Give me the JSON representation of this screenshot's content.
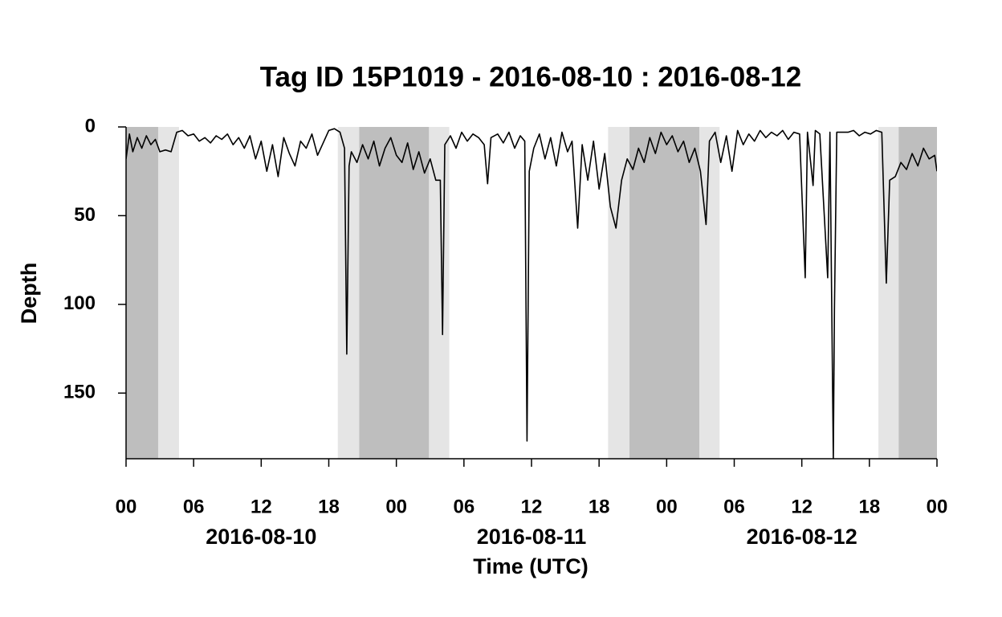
{
  "chart_data": {
    "type": "line",
    "title": "Tag ID 15P1019 - 2016-08-10 : 2016-08-12",
    "x_label": "Time (UTC)",
    "y_label": "Depth",
    "xlim": [
      0,
      72
    ],
    "ylim": [
      0,
      187
    ],
    "y_reversed": true,
    "xticks": [
      {
        "value": 0,
        "label": "00"
      },
      {
        "value": 6,
        "label": "06"
      },
      12,
      18,
      {
        "value": 24,
        "label": "00"
      },
      {
        "value": 30,
        "label": "06"
      },
      {
        "value": 36,
        "label": "12"
      },
      {
        "value": 42,
        "label": "18"
      },
      {
        "value": 48,
        "label": "00"
      },
      {
        "value": 54,
        "label": "06"
      },
      {
        "value": 60,
        "label": "12"
      },
      {
        "value": 66,
        "label": "18"
      },
      {
        "value": 72,
        "label": "00"
      }
    ],
    "yticks": [
      0,
      50,
      100,
      150
    ],
    "date_labels": [
      {
        "value": 12,
        "label": "2016-08-10"
      },
      {
        "value": 36,
        "label": "2016-08-11"
      },
      {
        "value": 60,
        "label": "2016-08-12"
      }
    ],
    "shading": [
      {
        "start": 0,
        "end": 2.85,
        "color": "#bebebe"
      },
      {
        "start": 2.85,
        "end": 4.7,
        "color": "#e5e5e5"
      },
      {
        "start": 18.8,
        "end": 20.7,
        "color": "#e5e5e5"
      },
      {
        "start": 20.7,
        "end": 26.9,
        "color": "#bebebe"
      },
      {
        "start": 26.9,
        "end": 28.7,
        "color": "#e5e5e5"
      },
      {
        "start": 42.8,
        "end": 44.7,
        "color": "#e5e5e5"
      },
      {
        "start": 44.7,
        "end": 50.9,
        "color": "#bebebe"
      },
      {
        "start": 50.9,
        "end": 52.7,
        "color": "#e5e5e5"
      },
      {
        "start": 66.8,
        "end": 68.6,
        "color": "#e5e5e5"
      },
      {
        "start": 68.6,
        "end": 72,
        "color": "#bebebe"
      }
    ],
    "color": "#000000",
    "x": [
      0,
      0.3,
      0.6,
      1,
      1.4,
      1.8,
      2.2,
      2.6,
      3,
      3.5,
      4,
      4.5,
      5,
      5.5,
      6,
      6.5,
      7,
      7.5,
      8,
      8.5,
      9,
      9.5,
      10,
      10.5,
      11,
      11.5,
      12,
      12.5,
      13,
      13.5,
      14,
      14.5,
      15,
      15.5,
      16,
      16.5,
      17,
      17.5,
      18,
      18.5,
      19,
      19.4,
      19.6,
      19.8,
      20,
      20.5,
      21,
      21.5,
      22,
      22.5,
      23,
      23.5,
      24,
      24.5,
      25,
      25.5,
      26,
      26.5,
      27,
      27.5,
      27.9,
      28.1,
      28.3,
      28.8,
      29.3,
      29.8,
      30.3,
      30.8,
      31.3,
      31.8,
      32.1,
      32.4,
      33,
      33.5,
      34,
      34.5,
      35,
      35.4,
      35.6,
      35.8,
      36.2,
      36.7,
      37.2,
      37.7,
      38.2,
      38.7,
      39.2,
      39.6,
      40.1,
      40.5,
      41,
      41.5,
      42,
      42.5,
      43,
      43.5,
      44,
      44.5,
      45,
      45.5,
      46,
      46.5,
      47,
      47.5,
      48,
      48.5,
      49,
      49.5,
      50,
      50.5,
      51,
      51.5,
      51.8,
      52.3,
      52.8,
      53.3,
      53.8,
      54.3,
      54.8,
      55.3,
      55.8,
      56.3,
      56.8,
      57.3,
      57.8,
      58.3,
      58.8,
      59.3,
      59.8,
      60.3,
      60.5,
      61,
      61.2,
      61.6,
      62.3,
      62.5,
      62.8,
      62.9,
      63.1,
      63.6,
      64.1,
      64.6,
      65.1,
      65.6,
      66.1,
      66.6,
      67.1,
      67.5,
      67.8,
      68.3,
      68.8,
      69.3,
      69.8,
      70.3,
      70.8,
      71.3,
      71.8,
      72
    ],
    "values": [
      18,
      4,
      14,
      6,
      12,
      5,
      10,
      7,
      14,
      13,
      14,
      3,
      2,
      5,
      4,
      8,
      6,
      9,
      5,
      7,
      4,
      10,
      6,
      12,
      5,
      18,
      8,
      25,
      10,
      28,
      6,
      15,
      22,
      8,
      12,
      4,
      16,
      9,
      2,
      1,
      3,
      12,
      128,
      22,
      14,
      20,
      10,
      18,
      8,
      22,
      12,
      6,
      16,
      20,
      9,
      24,
      14,
      26,
      18,
      30,
      30,
      117,
      10,
      5,
      12,
      3,
      8,
      4,
      6,
      10,
      32,
      6,
      4,
      9,
      3,
      12,
      5,
      8,
      177,
      25,
      12,
      4,
      18,
      6,
      22,
      3,
      14,
      8,
      57,
      10,
      30,
      8,
      35,
      15,
      45,
      57,
      30,
      18,
      24,
      12,
      20,
      6,
      15,
      3,
      10,
      5,
      14,
      8,
      20,
      12,
      25,
      55,
      8,
      3,
      20,
      5,
      25,
      2,
      10,
      4,
      8,
      2,
      6,
      3,
      5,
      2,
      7,
      3,
      4,
      85,
      3,
      33,
      2,
      4,
      85,
      3,
      187,
      103,
      3,
      3,
      3,
      2,
      5,
      3,
      4,
      2,
      3,
      88,
      30,
      28,
      20,
      24,
      15,
      22,
      12,
      18,
      16,
      25
    ]
  }
}
